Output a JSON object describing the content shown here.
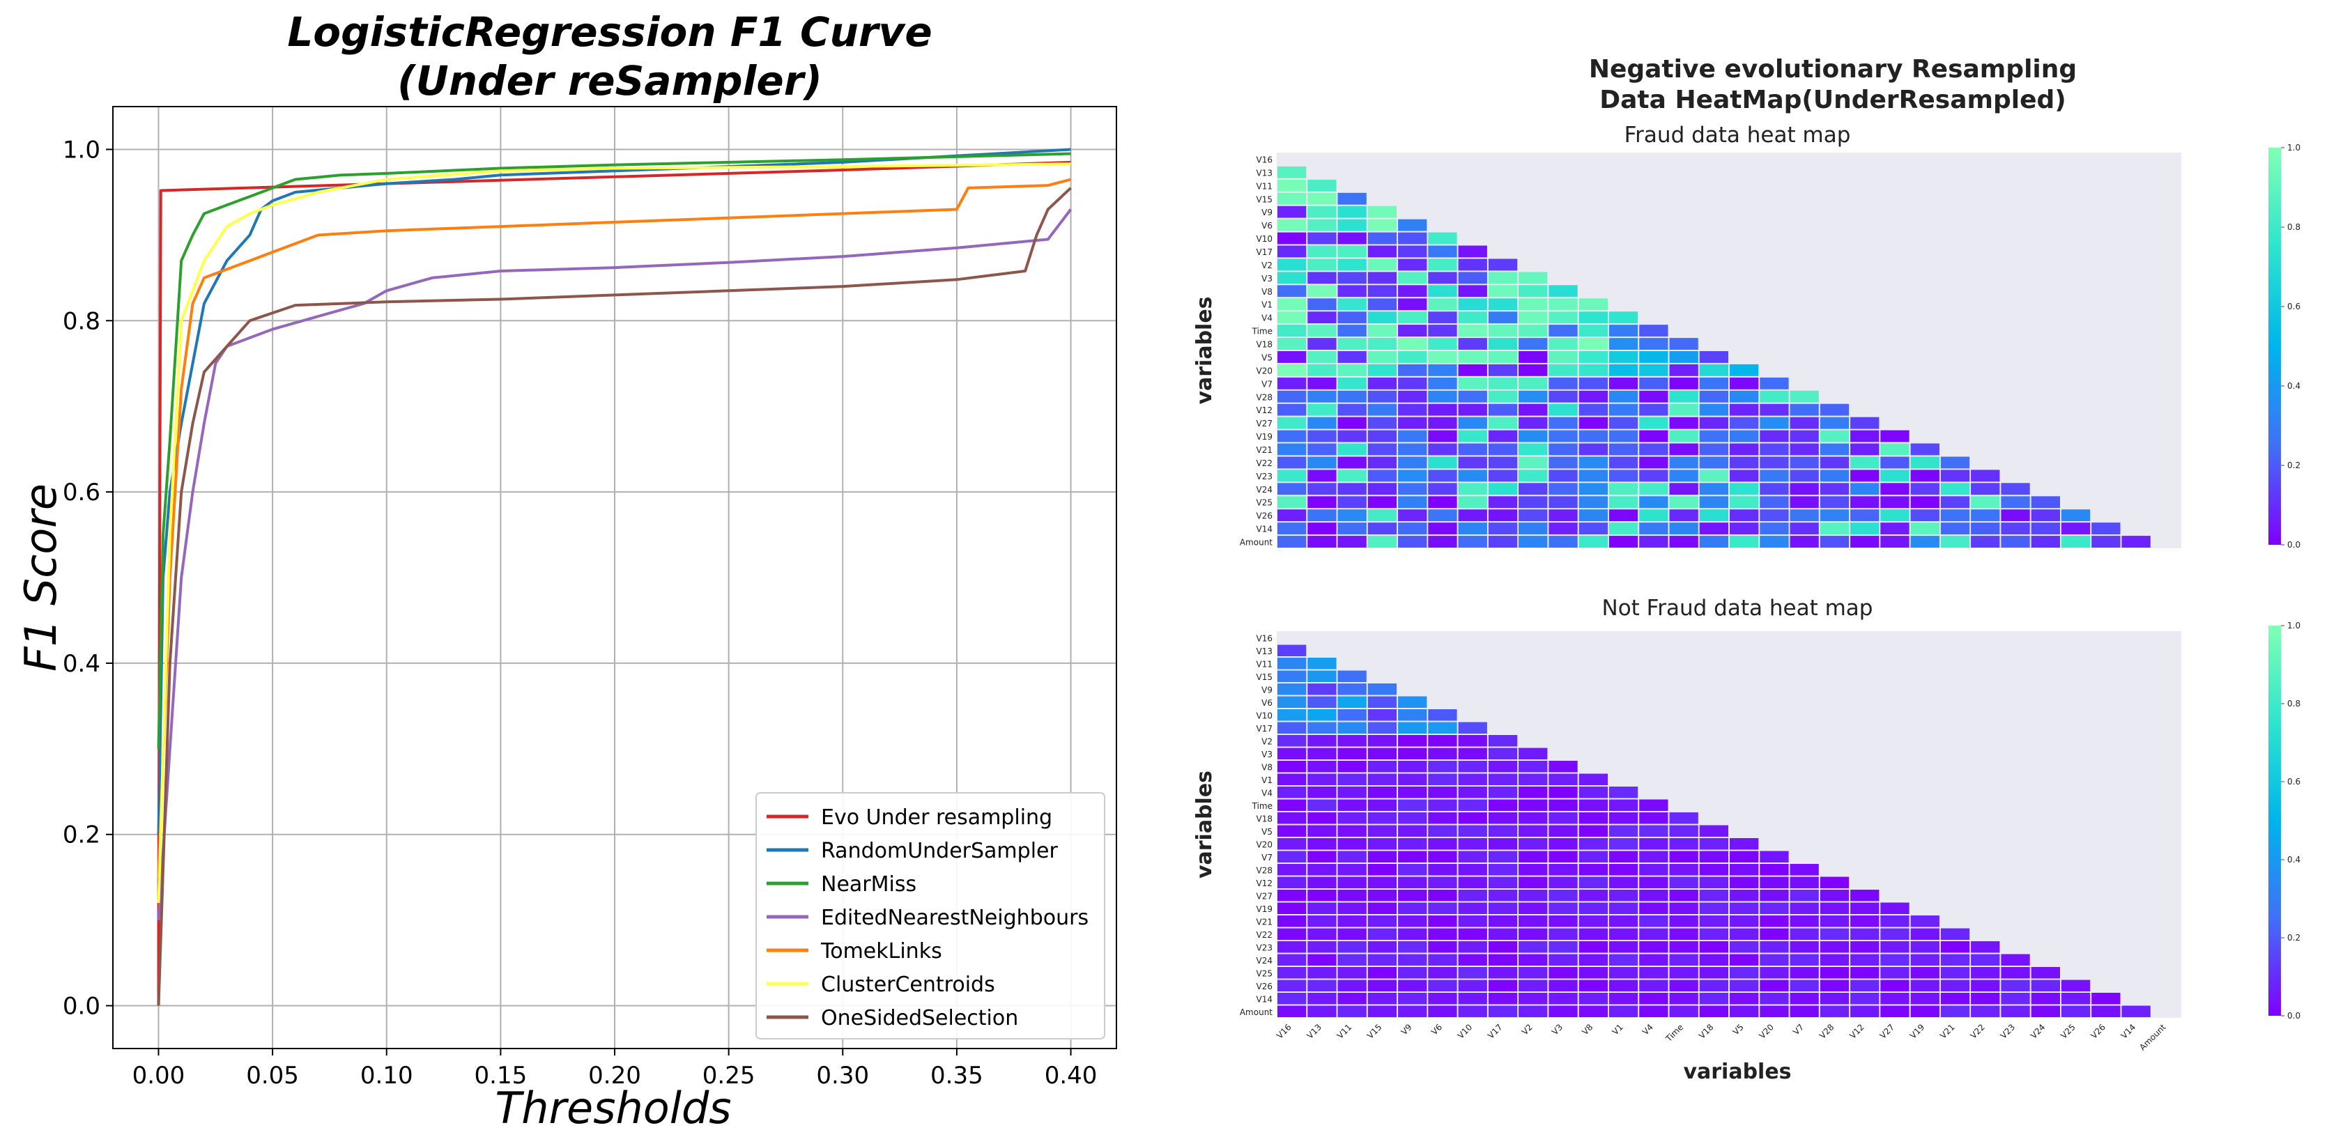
{
  "chart_data": [
    {
      "type": "line",
      "title_line1": "LogisticRegression F1 Curve",
      "title_line2": "(Under reSampler)",
      "xlabel": "Thresholds",
      "ylabel": "F1 Score",
      "xlim": [
        -0.02,
        0.42
      ],
      "ylim": [
        -0.05,
        1.05
      ],
      "x_ticks": [
        0.0,
        0.05,
        0.1,
        0.15,
        0.2,
        0.25,
        0.3,
        0.35,
        0.4
      ],
      "x_tick_labels": [
        "0.00",
        "0.05",
        "0.10",
        "0.15",
        "0.20",
        "0.25",
        "0.30",
        "0.35",
        "0.40"
      ],
      "y_ticks": [
        0.0,
        0.2,
        0.4,
        0.6,
        0.8,
        1.0
      ],
      "y_tick_labels": [
        "0.0",
        "0.2",
        "0.4",
        "0.6",
        "0.8",
        "1.0"
      ],
      "grid": true,
      "legend_position": "bottom-right",
      "series": [
        {
          "name": "Evo Under resampling",
          "color": "#d62728",
          "x": [
            0.0,
            0.0,
            0.001,
            0.1,
            0.2,
            0.3,
            0.4
          ],
          "y": [
            0.0,
            0.1,
            0.952,
            0.96,
            0.968,
            0.976,
            0.985
          ]
        },
        {
          "name": "RandomUnderSampler",
          "color": "#1f77b4",
          "x": [
            0.0,
            0.002,
            0.005,
            0.01,
            0.015,
            0.02,
            0.03,
            0.04,
            0.045,
            0.05,
            0.06,
            0.08,
            0.1,
            0.13,
            0.15,
            0.2,
            0.3,
            0.4
          ],
          "y": [
            0.2,
            0.5,
            0.6,
            0.68,
            0.75,
            0.82,
            0.87,
            0.9,
            0.93,
            0.94,
            0.95,
            0.955,
            0.96,
            0.965,
            0.97,
            0.975,
            0.985,
            1.0
          ]
        },
        {
          "name": "NearMiss",
          "color": "#2ca02c",
          "x": [
            0.0,
            0.002,
            0.005,
            0.01,
            0.015,
            0.02,
            0.03,
            0.04,
            0.05,
            0.06,
            0.08,
            0.1,
            0.15,
            0.2,
            0.3,
            0.4
          ],
          "y": [
            0.3,
            0.55,
            0.66,
            0.87,
            0.9,
            0.925,
            0.935,
            0.945,
            0.955,
            0.965,
            0.97,
            0.972,
            0.978,
            0.982,
            0.988,
            0.995
          ]
        },
        {
          "name": "EditedNearestNeighbours",
          "color": "#9467bd",
          "x": [
            0.0,
            0.005,
            0.01,
            0.015,
            0.02,
            0.025,
            0.03,
            0.05,
            0.07,
            0.09,
            0.1,
            0.12,
            0.15,
            0.2,
            0.25,
            0.3,
            0.35,
            0.39,
            0.4
          ],
          "y": [
            0.1,
            0.3,
            0.5,
            0.6,
            0.68,
            0.75,
            0.77,
            0.79,
            0.805,
            0.82,
            0.835,
            0.85,
            0.858,
            0.862,
            0.868,
            0.875,
            0.885,
            0.895,
            0.93
          ]
        },
        {
          "name": "TomekLinks",
          "color": "#ff7f0e",
          "x": [
            0.0,
            0.005,
            0.01,
            0.015,
            0.02,
            0.03,
            0.04,
            0.05,
            0.07,
            0.1,
            0.15,
            0.2,
            0.25,
            0.3,
            0.35,
            0.355,
            0.39,
            0.4
          ],
          "y": [
            0.15,
            0.5,
            0.72,
            0.82,
            0.85,
            0.86,
            0.87,
            0.88,
            0.9,
            0.905,
            0.91,
            0.915,
            0.92,
            0.925,
            0.93,
            0.955,
            0.958,
            0.965
          ]
        },
        {
          "name": "ClusterCentroids",
          "color": "#ffff4d",
          "x": [
            0.0,
            0.005,
            0.01,
            0.02,
            0.03,
            0.04,
            0.05,
            0.07,
            0.1,
            0.15,
            0.2,
            0.3,
            0.4
          ],
          "y": [
            0.12,
            0.55,
            0.8,
            0.87,
            0.91,
            0.925,
            0.935,
            0.95,
            0.965,
            0.975,
            0.978,
            0.98,
            0.983
          ]
        },
        {
          "name": "OneSidedSelection",
          "color": "#8c564b",
          "x": [
            0.0,
            0.005,
            0.01,
            0.015,
            0.02,
            0.03,
            0.04,
            0.06,
            0.08,
            0.1,
            0.15,
            0.2,
            0.25,
            0.3,
            0.35,
            0.38,
            0.385,
            0.39,
            0.4
          ],
          "y": [
            0.0,
            0.4,
            0.6,
            0.68,
            0.74,
            0.77,
            0.8,
            0.818,
            0.82,
            0.822,
            0.825,
            0.83,
            0.835,
            0.84,
            0.848,
            0.858,
            0.9,
            0.93,
            0.955
          ]
        }
      ]
    },
    {
      "type": "heatmap",
      "suptitle_line1": "Negative evolutionary Resampling",
      "suptitle_line2": "Data HeatMap(UnderResampled)",
      "xlabel": "variables",
      "ylabel": "variables",
      "variables": [
        "V16",
        "V13",
        "V11",
        "V15",
        "V9",
        "V6",
        "V10",
        "V17",
        "V2",
        "V3",
        "V8",
        "V1",
        "V4",
        "Time",
        "V18",
        "V5",
        "V20",
        "V7",
        "V28",
        "V12",
        "V27",
        "V19",
        "V21",
        "V22",
        "V23",
        "V24",
        "V25",
        "V26",
        "V14",
        "Amount"
      ],
      "colorbar_ticks": [
        "0.0",
        "0.2",
        "0.4",
        "0.6",
        "0.8",
        "1.0"
      ],
      "panels": [
        {
          "title": "Fraud data heat map",
          "mode": "fraud"
        },
        {
          "title": "Not Fraud data heat map",
          "mode": "notfraud"
        }
      ]
    }
  ]
}
